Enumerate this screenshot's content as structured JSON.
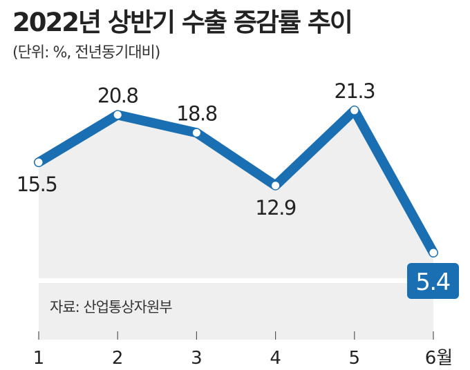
{
  "chart_data": {
    "type": "line",
    "title": "2022년 상반기 수출 증감률 추이",
    "subtitle": "(단위: %, 전년동기대비)",
    "categories": [
      "1",
      "2",
      "3",
      "4",
      "5",
      "6월"
    ],
    "values": [
      15.5,
      20.8,
      18.8,
      12.9,
      21.3,
      5.4
    ],
    "labels": [
      "15.5",
      "20.8",
      "18.8",
      "12.9",
      "21.3",
      "5.4"
    ],
    "source": "자료: 산업통상자원부",
    "xlabel": "",
    "ylabel": "",
    "colors": {
      "line": "#1a6fb3",
      "area": "#efefef",
      "highlight": "#1a6fb3"
    }
  }
}
